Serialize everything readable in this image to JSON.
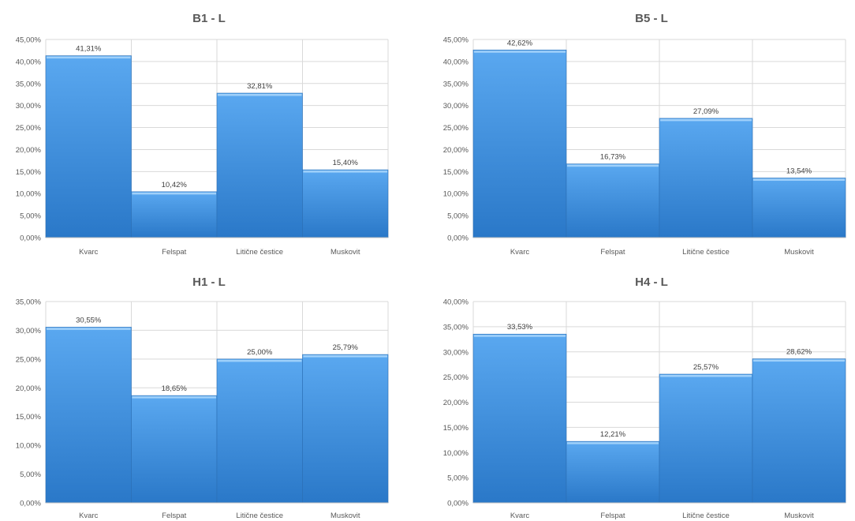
{
  "chart_data": [
    {
      "type": "bar",
      "title": "B1 - L",
      "categories": [
        "Kvarc",
        "Felspat",
        "Litične čestice",
        "Muskovit"
      ],
      "values": [
        41.31,
        10.42,
        32.81,
        15.4
      ],
      "value_labels": [
        "41,31%",
        "10,42%",
        "32,81%",
        "15,40%"
      ],
      "ylim": [
        0,
        45
      ],
      "ytick_labels": [
        "0,00%",
        "5,00%",
        "10,00%",
        "15,00%",
        "20,00%",
        "25,00%",
        "30,00%",
        "35,00%",
        "40,00%",
        "45,00%"
      ],
      "grid": true,
      "bar_color": "#3b8ee0"
    },
    {
      "type": "bar",
      "title": "B5 - L",
      "categories": [
        "Kvarc",
        "Felspat",
        "Litične čestice",
        "Muskovit"
      ],
      "values": [
        42.62,
        16.73,
        27.09,
        13.54
      ],
      "value_labels": [
        "42,62%",
        "16,73%",
        "27,09%",
        "13,54%"
      ],
      "ylim": [
        0,
        45
      ],
      "ytick_labels": [
        "0,00%",
        "5,00%",
        "10,00%",
        "15,00%",
        "20,00%",
        "25,00%",
        "30,00%",
        "35,00%",
        "40,00%",
        "45,00%"
      ],
      "grid": true,
      "bar_color": "#3b8ee0"
    },
    {
      "type": "bar",
      "title": "H1 - L",
      "categories": [
        "Kvarc",
        "Felspat",
        "Litične čestice",
        "Muskovit"
      ],
      "values": [
        30.55,
        18.65,
        25.0,
        25.79
      ],
      "value_labels": [
        "30,55%",
        "18,65%",
        "25,00%",
        "25,79%"
      ],
      "ylim": [
        0,
        35
      ],
      "ytick_labels": [
        "0,00%",
        "5,00%",
        "10,00%",
        "15,00%",
        "20,00%",
        "25,00%",
        "30,00%",
        "35,00%"
      ],
      "grid": true,
      "bar_color": "#3b8ee0"
    },
    {
      "type": "bar",
      "title": "H4 - L",
      "categories": [
        "Kvarc",
        "Felspat",
        "Litične čestice",
        "Muskovit"
      ],
      "values": [
        33.53,
        12.21,
        25.57,
        28.62
      ],
      "value_labels": [
        "33,53%",
        "12,21%",
        "25,57%",
        "28,62%"
      ],
      "ylim": [
        0,
        40
      ],
      "ytick_labels": [
        "0,00%",
        "5,00%",
        "10,00%",
        "15,00%",
        "20,00%",
        "25,00%",
        "30,00%",
        "35,00%",
        "40,00%"
      ],
      "grid": true,
      "bar_color": "#3b8ee0"
    }
  ]
}
